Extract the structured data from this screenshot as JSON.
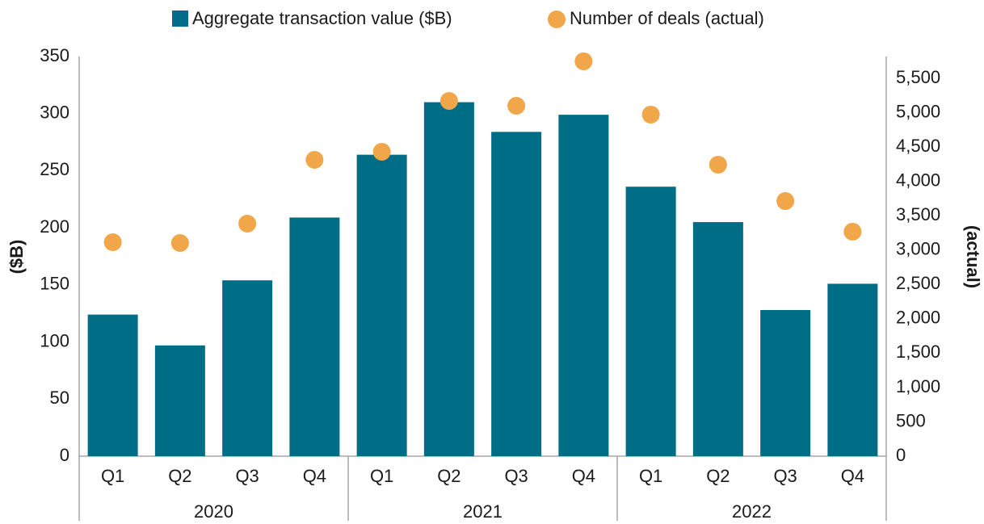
{
  "chart_data": {
    "type": "bar_scatter",
    "categories": [
      "Q1",
      "Q2",
      "Q3",
      "Q4",
      "Q1",
      "Q2",
      "Q3",
      "Q4",
      "Q1",
      "Q2",
      "Q3",
      "Q4"
    ],
    "groups": [
      "2020",
      "2021",
      "2022"
    ],
    "y_label": "($B)",
    "y2_label": "(actual)",
    "series": [
      {
        "name": "Aggregate transaction value ($B)",
        "color": "#006d86",
        "values": [
          124,
          97,
          154,
          209,
          264,
          310,
          284,
          299,
          236,
          205,
          128,
          151
        ]
      },
      {
        "name": "Number of deals (actual)",
        "color": "#f2a64a",
        "axis": "y2",
        "values": [
          3116,
          3104,
          3386,
          4315,
          4433,
          5173,
          5103,
          5750,
          4974,
          4245,
          3715,
          3269
        ]
      }
    ],
    "ylim": [
      0,
      350
    ],
    "yticks": [
      0,
      50,
      100,
      150,
      200,
      250,
      300,
      350
    ],
    "y2lim": [
      0,
      5820
    ],
    "y2ticks": [
      0,
      500,
      {
        "value": 1000,
        "label": "1,000"
      },
      {
        "value": 1500,
        "label": "1,500"
      },
      {
        "value": 2000,
        "label": "2,000"
      },
      {
        "value": 2500,
        "label": "2,500"
      },
      {
        "value": 3000,
        "label": "3,000"
      },
      {
        "value": 3500,
        "label": "3,500"
      },
      {
        "value": 4000,
        "label": "4,000"
      },
      {
        "value": 4500,
        "label": "4,500"
      },
      {
        "value": 5000,
        "label": "5,000"
      },
      {
        "value": 5500,
        "label": "5,500"
      }
    ],
    "legend": "top"
  }
}
